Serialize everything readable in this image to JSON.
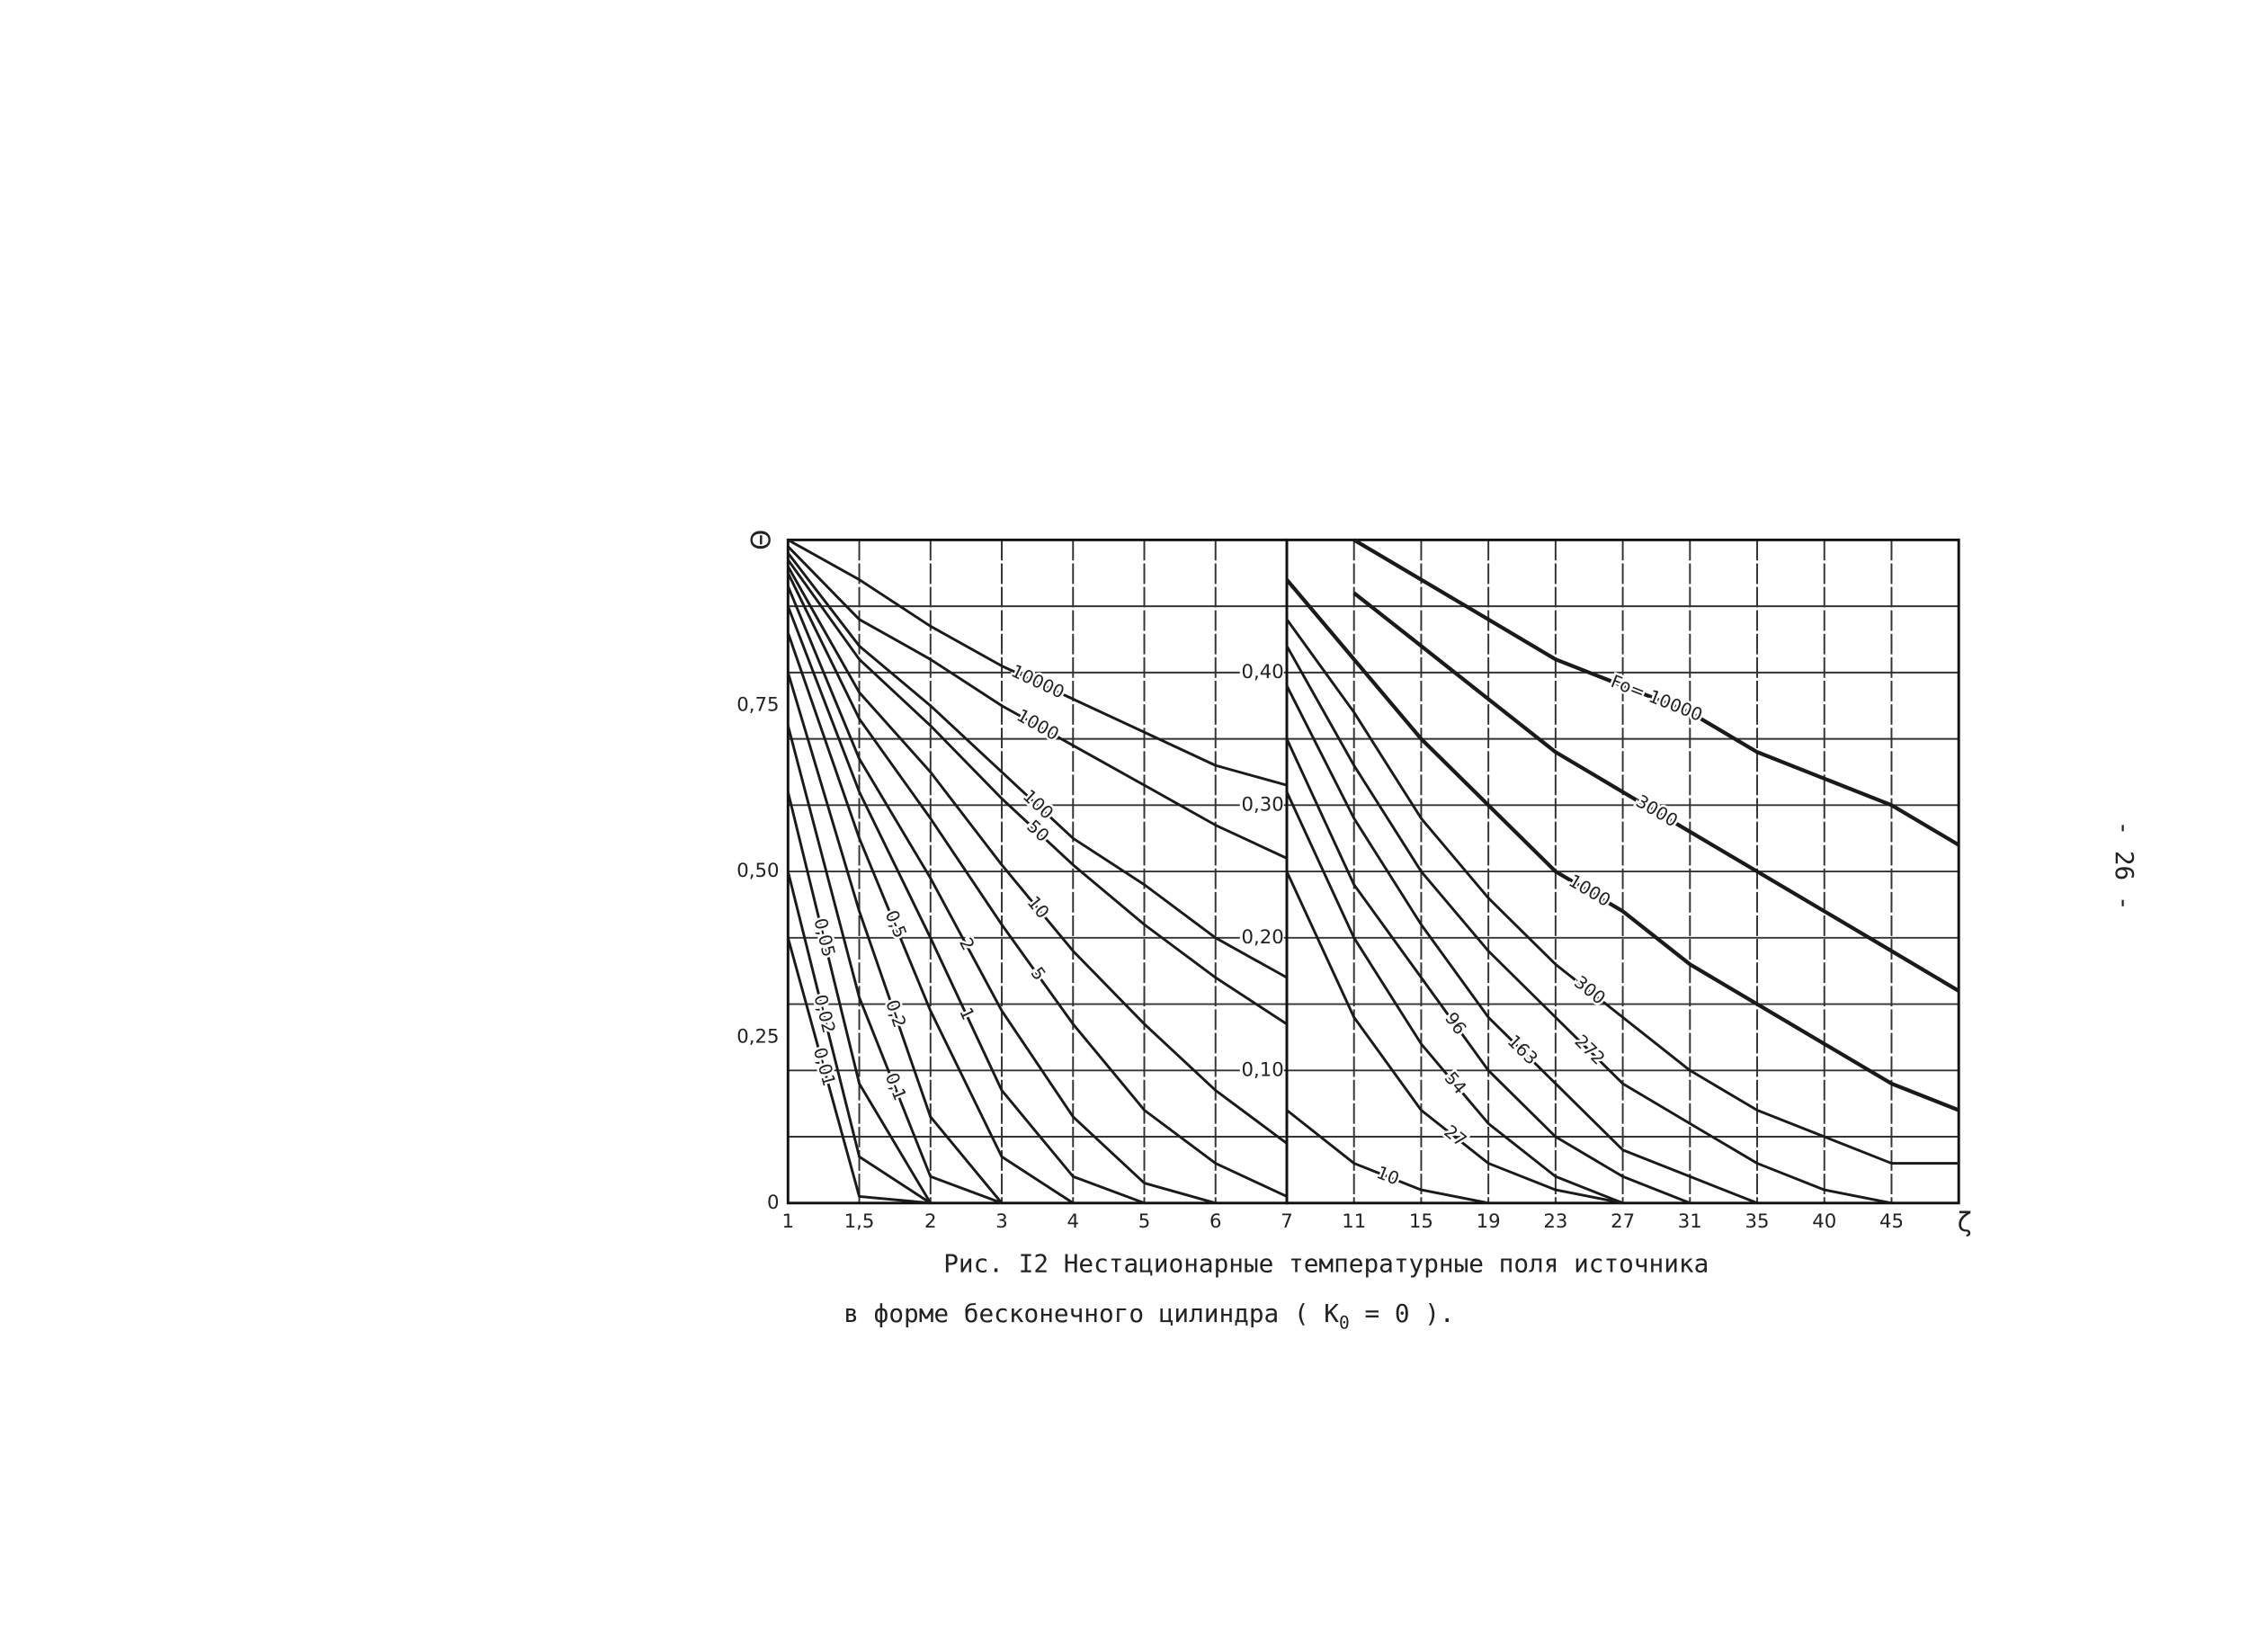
{
  "page_number": "- 26 -",
  "caption": {
    "line1": "Рис. I2 Нестационарные температурные поля источника",
    "line2_before": "в форме бесконечного цилиндра ( K",
    "line2_sub": "0",
    "line2_after": " = 0 )."
  },
  "chart_data": [
    {
      "type": "line",
      "y_label": "Θ",
      "xlim": [
        1,
        7
      ],
      "xticks": [
        1,
        {
          "value": 1.5,
          "label": "1,5"
        },
        2,
        3,
        4,
        5,
        6,
        7
      ],
      "ylim": [
        0,
        1
      ],
      "yticks": [
        0,
        {
          "value": 0.25,
          "label": "0,25"
        },
        {
          "value": 0.5,
          "label": "0,50"
        },
        {
          "value": 0.75,
          "label": "0,75"
        }
      ],
      "y_grid": [
        0.1,
        0.2,
        0.3,
        0.4,
        0.5,
        0.6,
        0.7,
        0.8,
        0.9
      ],
      "grid": true,
      "x": [
        1,
        1.5,
        2,
        3,
        4,
        5,
        6,
        7
      ],
      "series": [
        {
          "name": "10000",
          "color": "#1a1a1a",
          "values": [
            1,
            0.94,
            0.87,
            0.81,
            0.76,
            0.71,
            0.66,
            0.63
          ]
        },
        {
          "name": "1000",
          "color": "#1a1a1a",
          "values": [
            0.99,
            0.88,
            0.82,
            0.75,
            0.69,
            0.63,
            0.57,
            0.52
          ]
        },
        {
          "name": "100",
          "color": "#1a1a1a",
          "values": [
            0.98,
            0.84,
            0.75,
            0.65,
            0.55,
            0.48,
            0.4,
            0.34
          ]
        },
        {
          "name": "50",
          "color": "#1a1a1a",
          "values": [
            0.97,
            0.82,
            0.72,
            0.61,
            0.51,
            0.42,
            0.34,
            0.27
          ]
        },
        {
          "name": "10",
          "color": "#1a1a1a",
          "values": [
            0.96,
            0.77,
            0.65,
            0.51,
            0.38,
            0.27,
            0.17,
            0.09
          ]
        },
        {
          "name": "5",
          "color": "#1a1a1a",
          "values": [
            0.95,
            0.73,
            0.58,
            0.42,
            0.27,
            0.14,
            0.06,
            0.01
          ]
        },
        {
          "name": "2",
          "color": "#1a1a1a",
          "values": [
            0.93,
            0.67,
            0.49,
            0.29,
            0.13,
            0.03,
            0,
            null
          ]
        },
        {
          "name": "1",
          "color": "#1a1a1a",
          "values": [
            0.9,
            0.62,
            0.4,
            0.17,
            0.04,
            0,
            null,
            null
          ]
        },
        {
          "name": "0,5",
          "color": "#1a1a1a",
          "values": [
            0.86,
            0.55,
            0.29,
            0.07,
            0,
            null,
            null,
            null
          ]
        },
        {
          "name": "0,2",
          "color": "#1a1a1a",
          "values": [
            0.8,
            0.44,
            0.13,
            0,
            null,
            null,
            null,
            null
          ]
        },
        {
          "name": "0,1",
          "color": "#1a1a1a",
          "values": [
            0.72,
            0.31,
            0.04,
            0,
            null,
            null,
            null,
            null
          ]
        },
        {
          "name": "0,05",
          "color": "#1a1a1a",
          "values": [
            0.62,
            0.18,
            0,
            null,
            null,
            null,
            null,
            null
          ]
        },
        {
          "name": "0,02",
          "color": "#1a1a1a",
          "values": [
            0.5,
            0.07,
            0,
            null,
            null,
            null,
            null,
            null
          ]
        },
        {
          "name": "0,01",
          "color": "#1a1a1a",
          "values": [
            0.4,
            0.01,
            0,
            null,
            null,
            null,
            null,
            null
          ]
        }
      ]
    },
    {
      "type": "line",
      "x_label": "ζ",
      "xlim": [
        7,
        50
      ],
      "xticks": [
        11,
        15,
        19,
        23,
        27,
        31,
        35,
        40,
        45
      ],
      "ylim": [
        0,
        0.5
      ],
      "yticks": [
        {
          "value": 0.1,
          "label": "0,10"
        },
        {
          "value": 0.2,
          "label": "0,20"
        },
        {
          "value": 0.3,
          "label": "0,30"
        },
        {
          "value": 0.4,
          "label": "0,40"
        }
      ],
      "y_grid": [
        0.05,
        0.1,
        0.15,
        0.2,
        0.25,
        0.3,
        0.35,
        0.4,
        0.45
      ],
      "grid": true,
      "x": [
        7,
        11,
        15,
        19,
        23,
        27,
        31,
        35,
        40,
        45,
        50
      ],
      "series": [
        {
          "name": "Fo= 10000",
          "color": "#1a1a1a",
          "values": [
            null,
            0.5,
            0.47,
            0.44,
            0.41,
            0.39,
            0.37,
            0.34,
            0.32,
            0.3,
            0.27
          ]
        },
        {
          "name": "3000",
          "color": "#1a1a1a",
          "values": [
            null,
            0.46,
            0.42,
            0.38,
            0.34,
            0.31,
            0.28,
            0.25,
            0.22,
            0.19,
            0.16
          ]
        },
        {
          "name": "1000",
          "color": "#1a1a1a",
          "values": [
            0.47,
            0.41,
            0.35,
            0.3,
            0.25,
            0.22,
            0.18,
            0.15,
            0.12,
            0.09,
            0.07
          ]
        },
        {
          "name": "300",
          "color": "#1a1a1a",
          "values": [
            0.44,
            0.37,
            0.29,
            0.23,
            0.18,
            0.14,
            0.1,
            0.07,
            0.05,
            0.03,
            0.03
          ]
        },
        {
          "name": "272",
          "color": "#1a1a1a",
          "values": [
            0.42,
            0.33,
            0.25,
            0.19,
            0.14,
            0.09,
            0.06,
            0.03,
            0.01,
            0,
            null
          ]
        },
        {
          "name": "163",
          "color": "#1a1a1a",
          "values": [
            0.39,
            0.29,
            0.21,
            0.14,
            0.09,
            0.04,
            0.02,
            0,
            null,
            null,
            null
          ]
        },
        {
          "name": "96",
          "color": "#1a1a1a",
          "values": [
            0.35,
            0.24,
            0.17,
            0.1,
            0.05,
            0.02,
            0,
            null,
            null,
            null,
            null
          ]
        },
        {
          "name": "54",
          "color": "#1a1a1a",
          "values": [
            0.31,
            0.2,
            0.12,
            0.06,
            0.02,
            0,
            null,
            null,
            null,
            null,
            null
          ]
        },
        {
          "name": "27",
          "color": "#1a1a1a",
          "values": [
            0.25,
            0.14,
            0.07,
            0.03,
            0.01,
            0,
            null,
            null,
            null,
            null,
            null
          ]
        },
        {
          "name": "10",
          "color": "#1a1a1a",
          "values": [
            0.07,
            0.03,
            0.01,
            0,
            null,
            null,
            null,
            null,
            null,
            null,
            null
          ]
        }
      ]
    }
  ]
}
